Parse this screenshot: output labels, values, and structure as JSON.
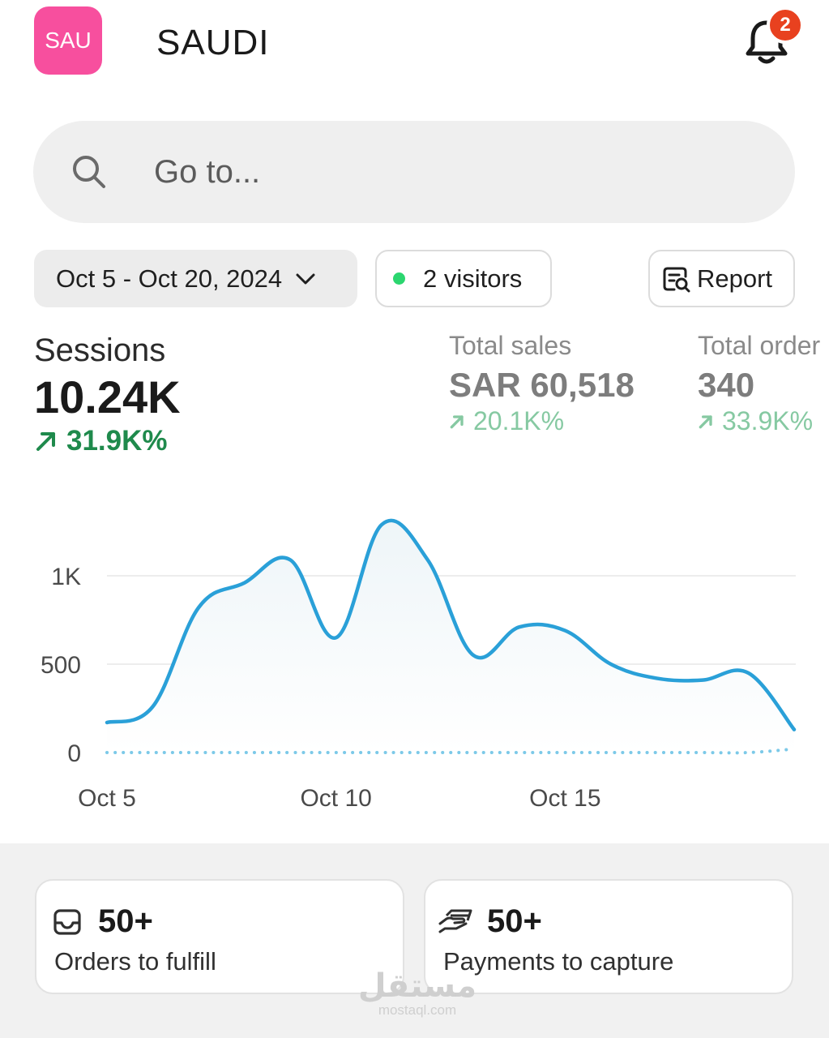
{
  "header": {
    "logo_text": "SAU",
    "store_name": "SAUDI",
    "notification_count": "2"
  },
  "search": {
    "placeholder": "Go to..."
  },
  "filters": {
    "date_range": "Oct 5 - Oct 20, 2024",
    "visitors": "2 visitors",
    "report_label": "Report"
  },
  "metrics": {
    "sessions": {
      "label": "Sessions",
      "value": "10.24K",
      "change": "31.9K%"
    },
    "total_sales": {
      "label": "Total sales",
      "value": "SAR 60,518",
      "change": "20.1K%"
    },
    "total_orders": {
      "label": "Total order",
      "value": "340",
      "change": "33.9K%"
    }
  },
  "chart_data": {
    "type": "area",
    "x": [
      "Oct 5",
      "Oct 6",
      "Oct 7",
      "Oct 8",
      "Oct 9",
      "Oct 10",
      "Oct 11",
      "Oct 12",
      "Oct 13",
      "Oct 14",
      "Oct 15",
      "Oct 16",
      "Oct 17",
      "Oct 18",
      "Oct 19",
      "Oct 20"
    ],
    "x_tick_labels": [
      "Oct 5",
      "Oct 10",
      "Oct 15"
    ],
    "y_tick_labels": [
      "0",
      "500",
      "1K"
    ],
    "ylim": [
      0,
      1300
    ],
    "grid": true,
    "series": [
      {
        "values": [
          170,
          260,
          820,
          960,
          1090,
          650,
          1290,
          1090,
          550,
          710,
          690,
          500,
          420,
          410,
          450,
          130
        ]
      },
      {
        "style": "dotted",
        "values": [
          0,
          0,
          0,
          0,
          0,
          0,
          0,
          0,
          0,
          0,
          0,
          0,
          0,
          0,
          0,
          20
        ]
      }
    ],
    "colors": {
      "line": "#2aa0d8",
      "dotted": "#7cc9e8",
      "fill": "#eef5f8"
    }
  },
  "cards": [
    {
      "icon": "inbox-icon",
      "value": "50+",
      "label": "Orders to fulfill"
    },
    {
      "icon": "payment-hand-icon",
      "value": "50+",
      "label": "Payments to capture"
    }
  ],
  "watermark": {
    "text_ar": "مستقل",
    "text_en": "mostaql.com"
  }
}
